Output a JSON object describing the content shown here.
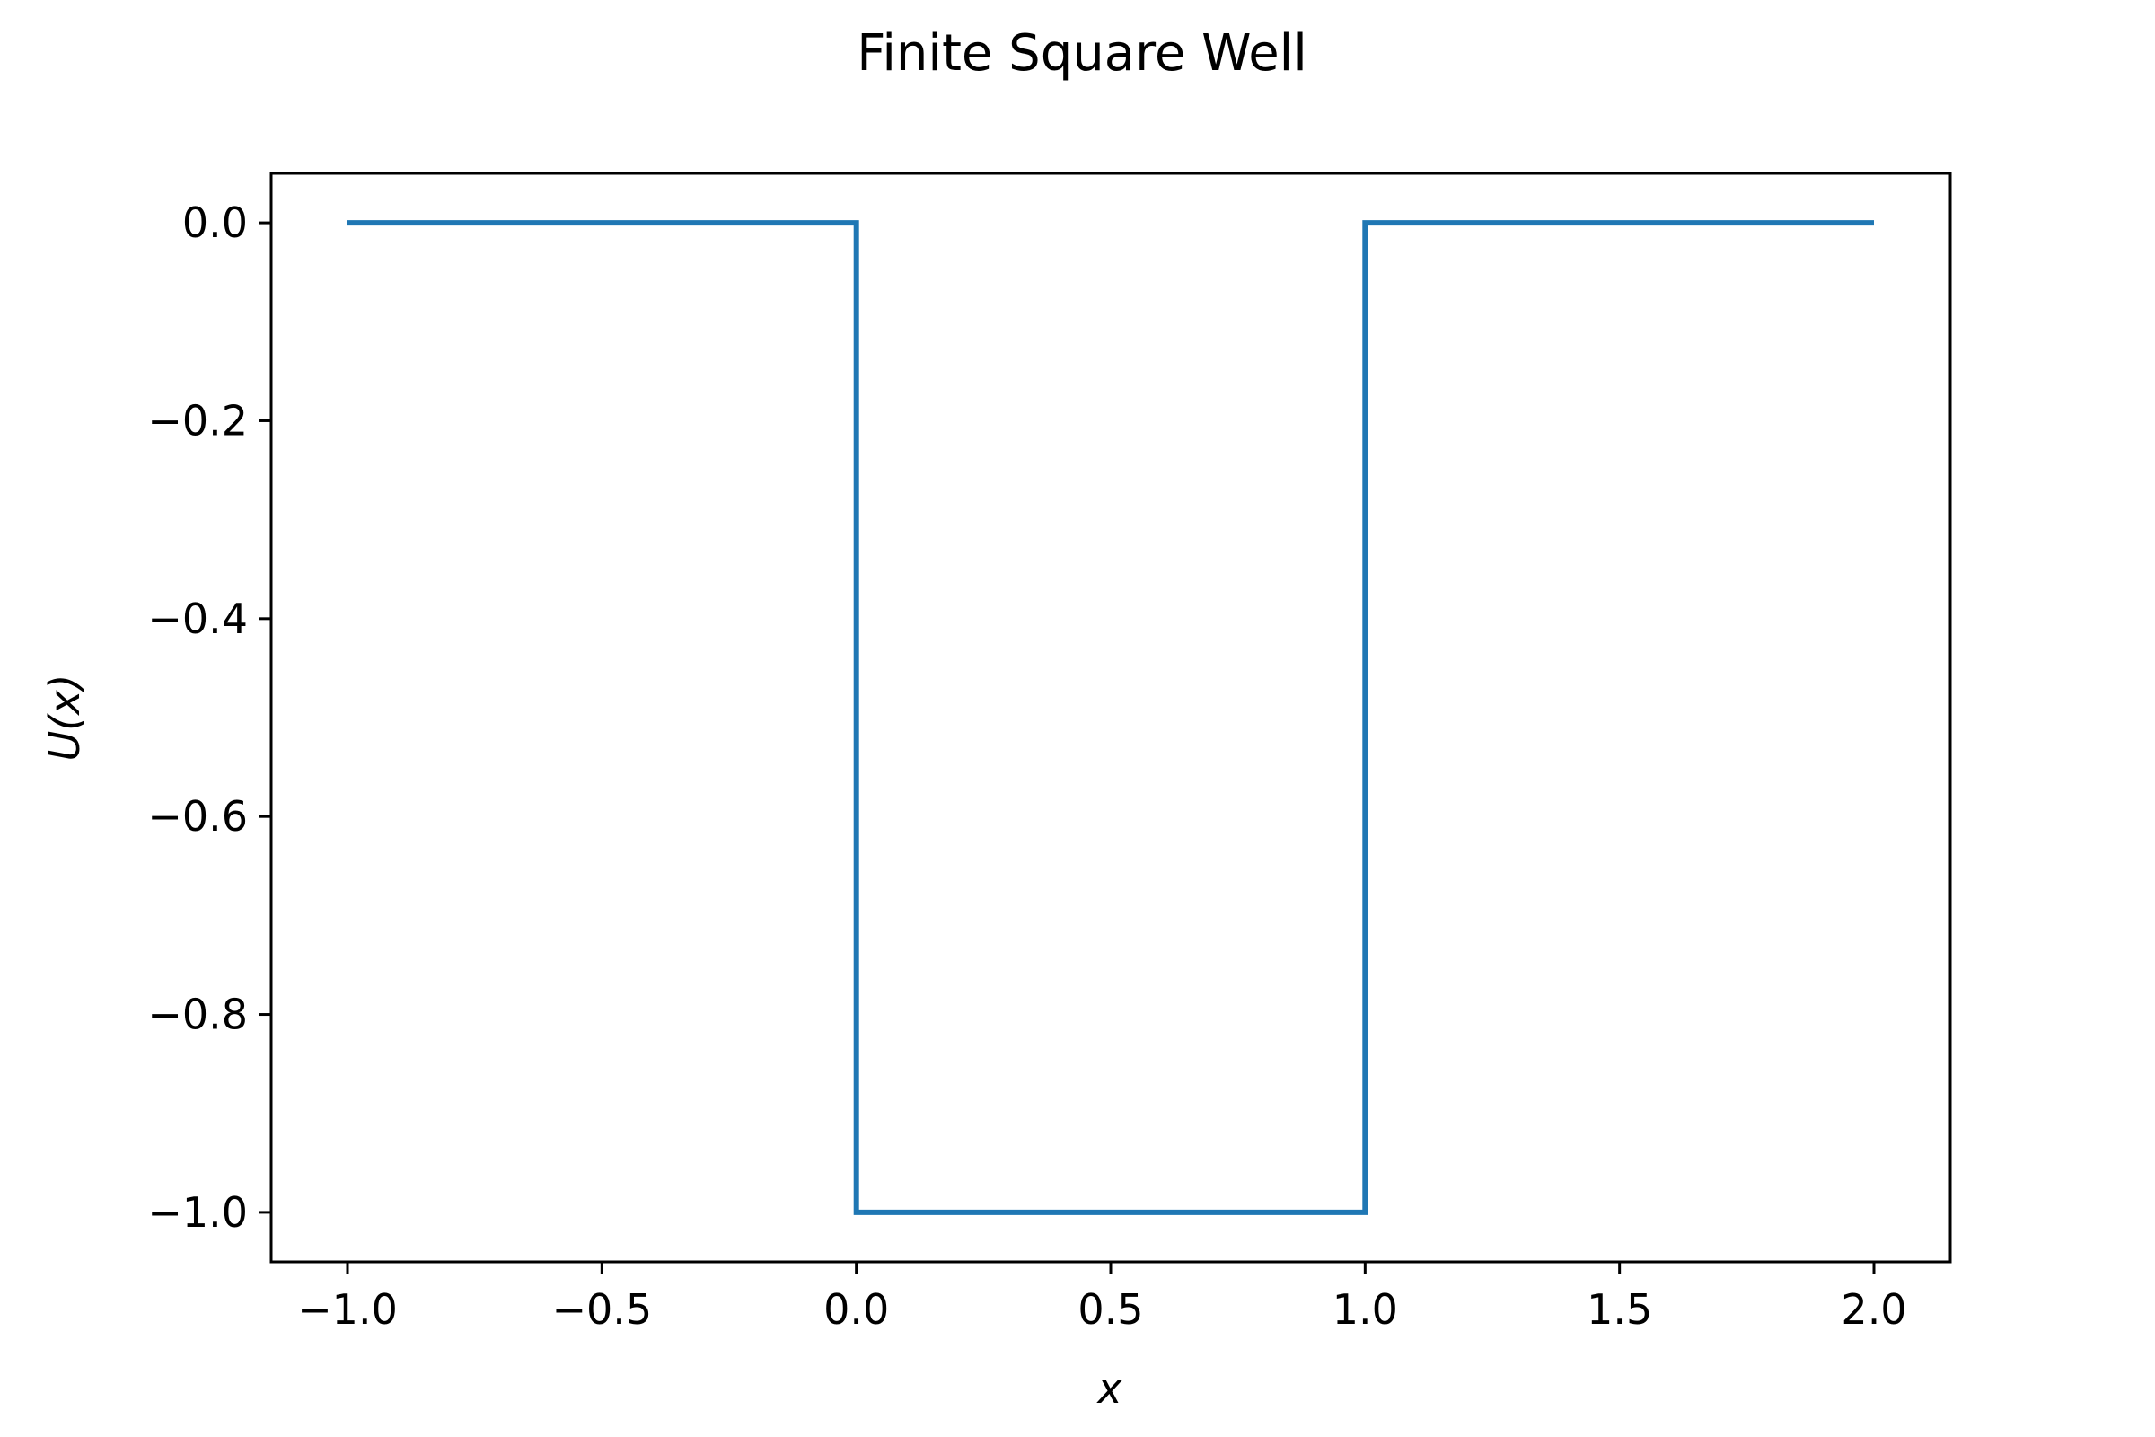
{
  "chart_data": {
    "type": "line",
    "title": "Finite Square Well",
    "xlabel": "x",
    "ylabel": "U(x)",
    "xlim": [
      -1.15,
      2.15
    ],
    "ylim": [
      -1.05,
      0.05
    ],
    "xticks": [
      -1.0,
      -0.5,
      0.0,
      0.5,
      1.0,
      1.5,
      2.0
    ],
    "xtick_labels": [
      "−1.0",
      "−0.5",
      "0.0",
      "0.5",
      "1.0",
      "1.5",
      "2.0"
    ],
    "yticks": [
      0.0,
      -0.2,
      -0.4,
      -0.6,
      -0.8,
      -1.0
    ],
    "ytick_labels": [
      "0.0",
      "−0.2",
      "−0.4",
      "−0.6",
      "−0.8",
      "−1.0"
    ],
    "grid": false,
    "series": [
      {
        "color": "#1f77b4",
        "x": [
          -1.0,
          0.0,
          0.0,
          1.0,
          1.0,
          2.0
        ],
        "y": [
          0.0,
          0.0,
          -1.0,
          -1.0,
          0.0,
          0.0
        ]
      }
    ]
  }
}
